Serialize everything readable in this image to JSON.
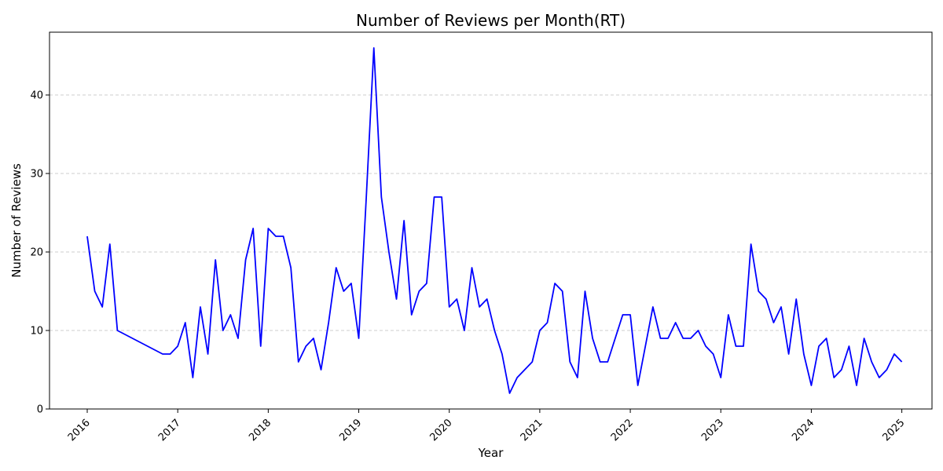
{
  "chart_data": {
    "type": "line",
    "title": "Number of Reviews per Month(RT)",
    "xlabel": "Year",
    "ylabel": "Number of Reviews",
    "x_axis": "date",
    "xlim": [
      "2015-08-01",
      "2025-05-01"
    ],
    "ylim": [
      0,
      48
    ],
    "x_ticks": [
      "2016",
      "2017",
      "2018",
      "2019",
      "2020",
      "2021",
      "2022",
      "2023",
      "2024",
      "2025"
    ],
    "y_ticks": [
      0,
      10,
      20,
      30,
      40
    ],
    "grid": "y-dashed",
    "series": [
      {
        "name": "",
        "color": "#0000ff",
        "points": [
          [
            "2016-01",
            22
          ],
          [
            "2016-02",
            15
          ],
          [
            "2016-03",
            13
          ],
          [
            "2016-04",
            21
          ],
          [
            "2016-05",
            10
          ],
          [
            "2016-11",
            7
          ],
          [
            "2016-12",
            7
          ],
          [
            "2017-01",
            8
          ],
          [
            "2017-02",
            11
          ],
          [
            "2017-03",
            4
          ],
          [
            "2017-04",
            13
          ],
          [
            "2017-05",
            7
          ],
          [
            "2017-06",
            19
          ],
          [
            "2017-07",
            10
          ],
          [
            "2017-08",
            12
          ],
          [
            "2017-09",
            9
          ],
          [
            "2017-10",
            19
          ],
          [
            "2017-11",
            23
          ],
          [
            "2017-12",
            8
          ],
          [
            "2018-01",
            23
          ],
          [
            "2018-02",
            22
          ],
          [
            "2018-03",
            22
          ],
          [
            "2018-04",
            18
          ],
          [
            "2018-05",
            6
          ],
          [
            "2018-06",
            8
          ],
          [
            "2018-07",
            9
          ],
          [
            "2018-08",
            5
          ],
          [
            "2018-09",
            11
          ],
          [
            "2018-10",
            18
          ],
          [
            "2018-11",
            15
          ],
          [
            "2018-12",
            16
          ],
          [
            "2019-01",
            9
          ],
          [
            "2019-02",
            27
          ],
          [
            "2019-03",
            46
          ],
          [
            "2019-04",
            27
          ],
          [
            "2019-05",
            20
          ],
          [
            "2019-06",
            14
          ],
          [
            "2019-07",
            24
          ],
          [
            "2019-08",
            12
          ],
          [
            "2019-09",
            15
          ],
          [
            "2019-10",
            16
          ],
          [
            "2019-11",
            27
          ],
          [
            "2019-12",
            27
          ],
          [
            "2020-01",
            13
          ],
          [
            "2020-02",
            14
          ],
          [
            "2020-03",
            10
          ],
          [
            "2020-04",
            18
          ],
          [
            "2020-05",
            13
          ],
          [
            "2020-06",
            14
          ],
          [
            "2020-07",
            10
          ],
          [
            "2020-08",
            7
          ],
          [
            "2020-09",
            2
          ],
          [
            "2020-10",
            4
          ],
          [
            "2020-12",
            6
          ],
          [
            "2021-01",
            10
          ],
          [
            "2021-02",
            11
          ],
          [
            "2021-03",
            16
          ],
          [
            "2021-04",
            15
          ],
          [
            "2021-05",
            6
          ],
          [
            "2021-06",
            4
          ],
          [
            "2021-07",
            15
          ],
          [
            "2021-08",
            9
          ],
          [
            "2021-09",
            6
          ],
          [
            "2021-10",
            6
          ],
          [
            "2021-12",
            12
          ],
          [
            "2022-01",
            12
          ],
          [
            "2022-02",
            3
          ],
          [
            "2022-03",
            8
          ],
          [
            "2022-04",
            13
          ],
          [
            "2022-05",
            9
          ],
          [
            "2022-06",
            9
          ],
          [
            "2022-07",
            11
          ],
          [
            "2022-08",
            9
          ],
          [
            "2022-09",
            9
          ],
          [
            "2022-10",
            10
          ],
          [
            "2022-11",
            8
          ],
          [
            "2022-12",
            7
          ],
          [
            "2023-01",
            4
          ],
          [
            "2023-02",
            12
          ],
          [
            "2023-03",
            8
          ],
          [
            "2023-04",
            8
          ],
          [
            "2023-05",
            21
          ],
          [
            "2023-06",
            15
          ],
          [
            "2023-07",
            14
          ],
          [
            "2023-08",
            11
          ],
          [
            "2023-09",
            13
          ],
          [
            "2023-10",
            7
          ],
          [
            "2023-11",
            14
          ],
          [
            "2023-12",
            7
          ],
          [
            "2024-01",
            3
          ],
          [
            "2024-02",
            8
          ],
          [
            "2024-03",
            9
          ],
          [
            "2024-04",
            4
          ],
          [
            "2024-05",
            5
          ],
          [
            "2024-06",
            8
          ],
          [
            "2024-07",
            3
          ],
          [
            "2024-08",
            9
          ],
          [
            "2024-09",
            6
          ],
          [
            "2024-10",
            4
          ],
          [
            "2024-11",
            5
          ],
          [
            "2024-12",
            7
          ],
          [
            "2025-01",
            6
          ]
        ]
      }
    ]
  }
}
